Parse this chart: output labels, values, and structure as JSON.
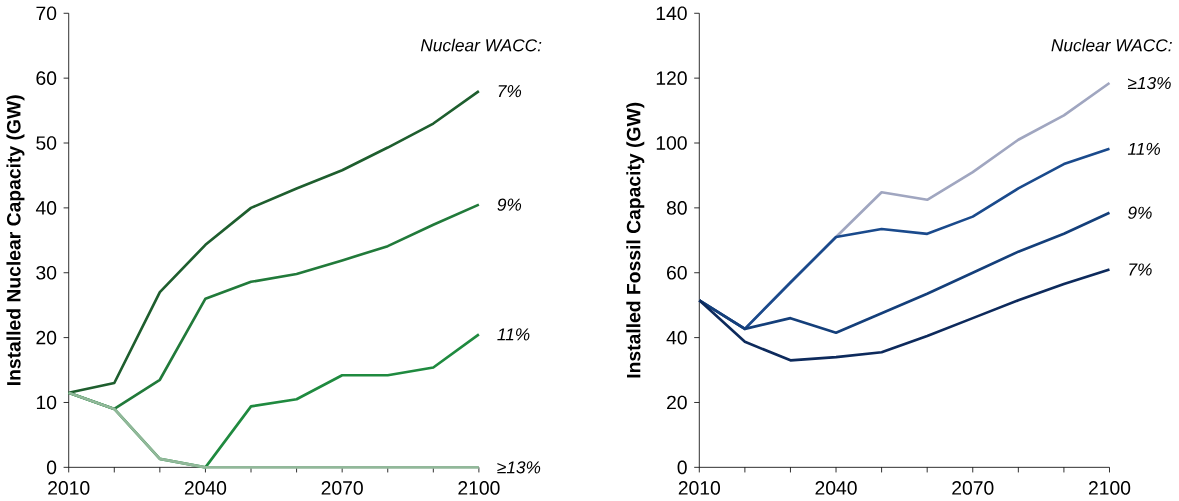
{
  "chart_data": [
    {
      "type": "line",
      "ylabel": "Installed Nuclear Capacity (GW)",
      "annotations": [
        "Nuclear WACC:"
      ],
      "x": [
        2010,
        2020,
        2030,
        2040,
        2050,
        2060,
        2070,
        2080,
        2090,
        2100
      ],
      "xlim": [
        2010,
        2100
      ],
      "xticks": [
        2010,
        {
          "value": 2020,
          "label": null
        },
        {
          "value": 2030,
          "label": null
        },
        2040,
        {
          "value": 2050,
          "label": null
        },
        {
          "value": 2060,
          "label": null
        },
        2070,
        {
          "value": 2080,
          "label": null
        },
        {
          "value": 2090,
          "label": null
        },
        2100
      ],
      "ylim": [
        0,
        70
      ],
      "yticks": [
        0,
        10,
        20,
        30,
        40,
        50,
        60,
        70
      ],
      "grid": false,
      "series": [
        {
          "name": "7%",
          "color": "#1e5e2e",
          "values": [
            11.5,
            13,
            27,
            34.3,
            40,
            43,
            45.8,
            49.3,
            53,
            58
          ]
        },
        {
          "name": "9%",
          "color": "#217a3a",
          "values": [
            11.5,
            9,
            13.5,
            26,
            28.6,
            29.8,
            31.9,
            34.1,
            37.4,
            40.5
          ]
        },
        {
          "name": "11%",
          "color": "#1f8a3f",
          "values": [
            11.5,
            9,
            1.3,
            0,
            9.4,
            10.5,
            14.2,
            14.2,
            15.4,
            20.5
          ]
        },
        {
          "name": "≥13%",
          "color": "#92b89a",
          "values": [
            11.5,
            9,
            1.3,
            0,
            0,
            0,
            0,
            0,
            0,
            0
          ]
        }
      ]
    },
    {
      "type": "line",
      "ylabel": "Installed Fossil Capacity (GW)",
      "annotations": [
        "Nuclear WACC:"
      ],
      "x": [
        2010,
        2020,
        2030,
        2040,
        2050,
        2060,
        2070,
        2080,
        2090,
        2100
      ],
      "xlim": [
        2010,
        2100
      ],
      "xticks": [
        2010,
        {
          "value": 2020,
          "label": null
        },
        {
          "value": 2030,
          "label": null
        },
        2040,
        {
          "value": 2050,
          "label": null
        },
        {
          "value": 2060,
          "label": null
        },
        2070,
        {
          "value": 2080,
          "label": null
        },
        {
          "value": 2090,
          "label": null
        },
        2100
      ],
      "ylim": [
        0,
        140
      ],
      "yticks": [
        0,
        20,
        40,
        60,
        80,
        100,
        120,
        140
      ],
      "grid": false,
      "series": [
        {
          "name": "≥13%",
          "color": "#a0a6c0",
          "values": [
            51.5,
            42.7,
            57,
            71,
            84.8,
            82.5,
            91,
            101,
            108.5,
            118.5
          ]
        },
        {
          "name": "11%",
          "color": "#1a4a8c",
          "values": [
            51.5,
            42.7,
            57,
            71,
            73.5,
            72,
            77.3,
            86,
            93.5,
            98.2
          ]
        },
        {
          "name": "9%",
          "color": "#143f7a",
          "values": [
            51.5,
            42.7,
            46,
            41.5,
            47.5,
            53.5,
            60,
            66.5,
            72,
            78.5
          ]
        },
        {
          "name": "7%",
          "color": "#0d2a5c",
          "values": [
            51.5,
            38.7,
            33,
            34,
            35.5,
            40.5,
            46,
            51.5,
            56.5,
            61
          ]
        }
      ]
    }
  ]
}
